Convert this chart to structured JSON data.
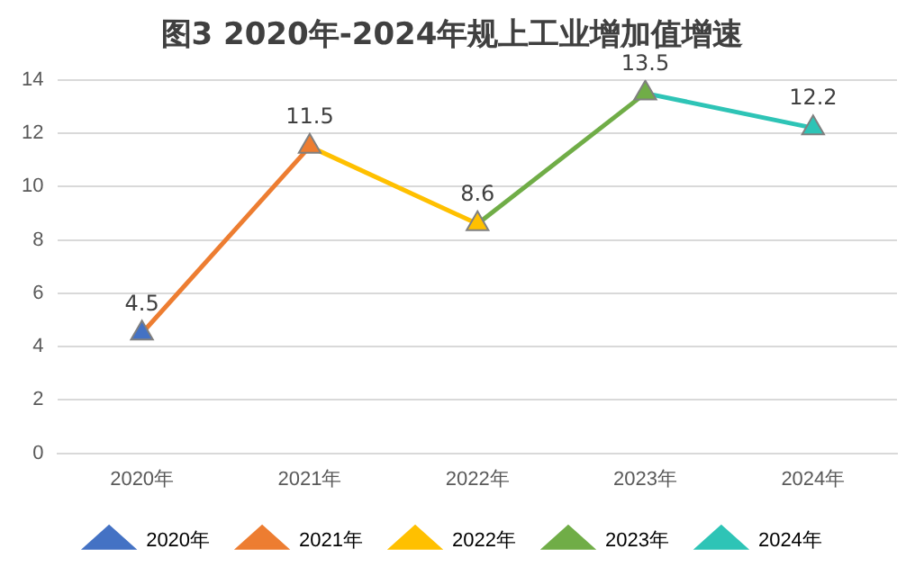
{
  "chart_data": {
    "type": "line",
    "title": "图3 2020年-2024年规上工业增加值增速",
    "categories": [
      "2020年",
      "2021年",
      "2022年",
      "2023年",
      "2024年"
    ],
    "series": [
      {
        "name": "2020年",
        "color": "#4472c4",
        "values": [
          4.5,
          null,
          null,
          null,
          null
        ],
        "value_labels": [
          "4.5",
          null,
          null,
          null,
          null
        ]
      },
      {
        "name": "2021年",
        "color": "#ed7d31",
        "values": [
          4.5,
          11.5,
          null,
          null,
          null
        ],
        "value_labels": [
          null,
          "11.5",
          null,
          null,
          null
        ]
      },
      {
        "name": "2022年",
        "color": "#ffc000",
        "values": [
          null,
          11.5,
          8.6,
          null,
          null
        ],
        "value_labels": [
          null,
          null,
          "8.6",
          null,
          null
        ]
      },
      {
        "name": "2023年",
        "color": "#70ad47",
        "values": [
          null,
          null,
          8.6,
          13.5,
          null
        ],
        "value_labels": [
          null,
          null,
          null,
          "13.5",
          null
        ]
      },
      {
        "name": "2024年",
        "color": "#2ec4b6",
        "values": [
          null,
          null,
          null,
          13.5,
          12.2
        ],
        "value_labels": [
          null,
          null,
          null,
          null,
          "12.2"
        ]
      }
    ],
    "ylim": [
      0,
      14
    ],
    "yticks": [
      0,
      2,
      4,
      6,
      8,
      10,
      12,
      14
    ],
    "grid": "y",
    "legend": "bottom",
    "marker": "triangle",
    "line_style": "solid"
  }
}
